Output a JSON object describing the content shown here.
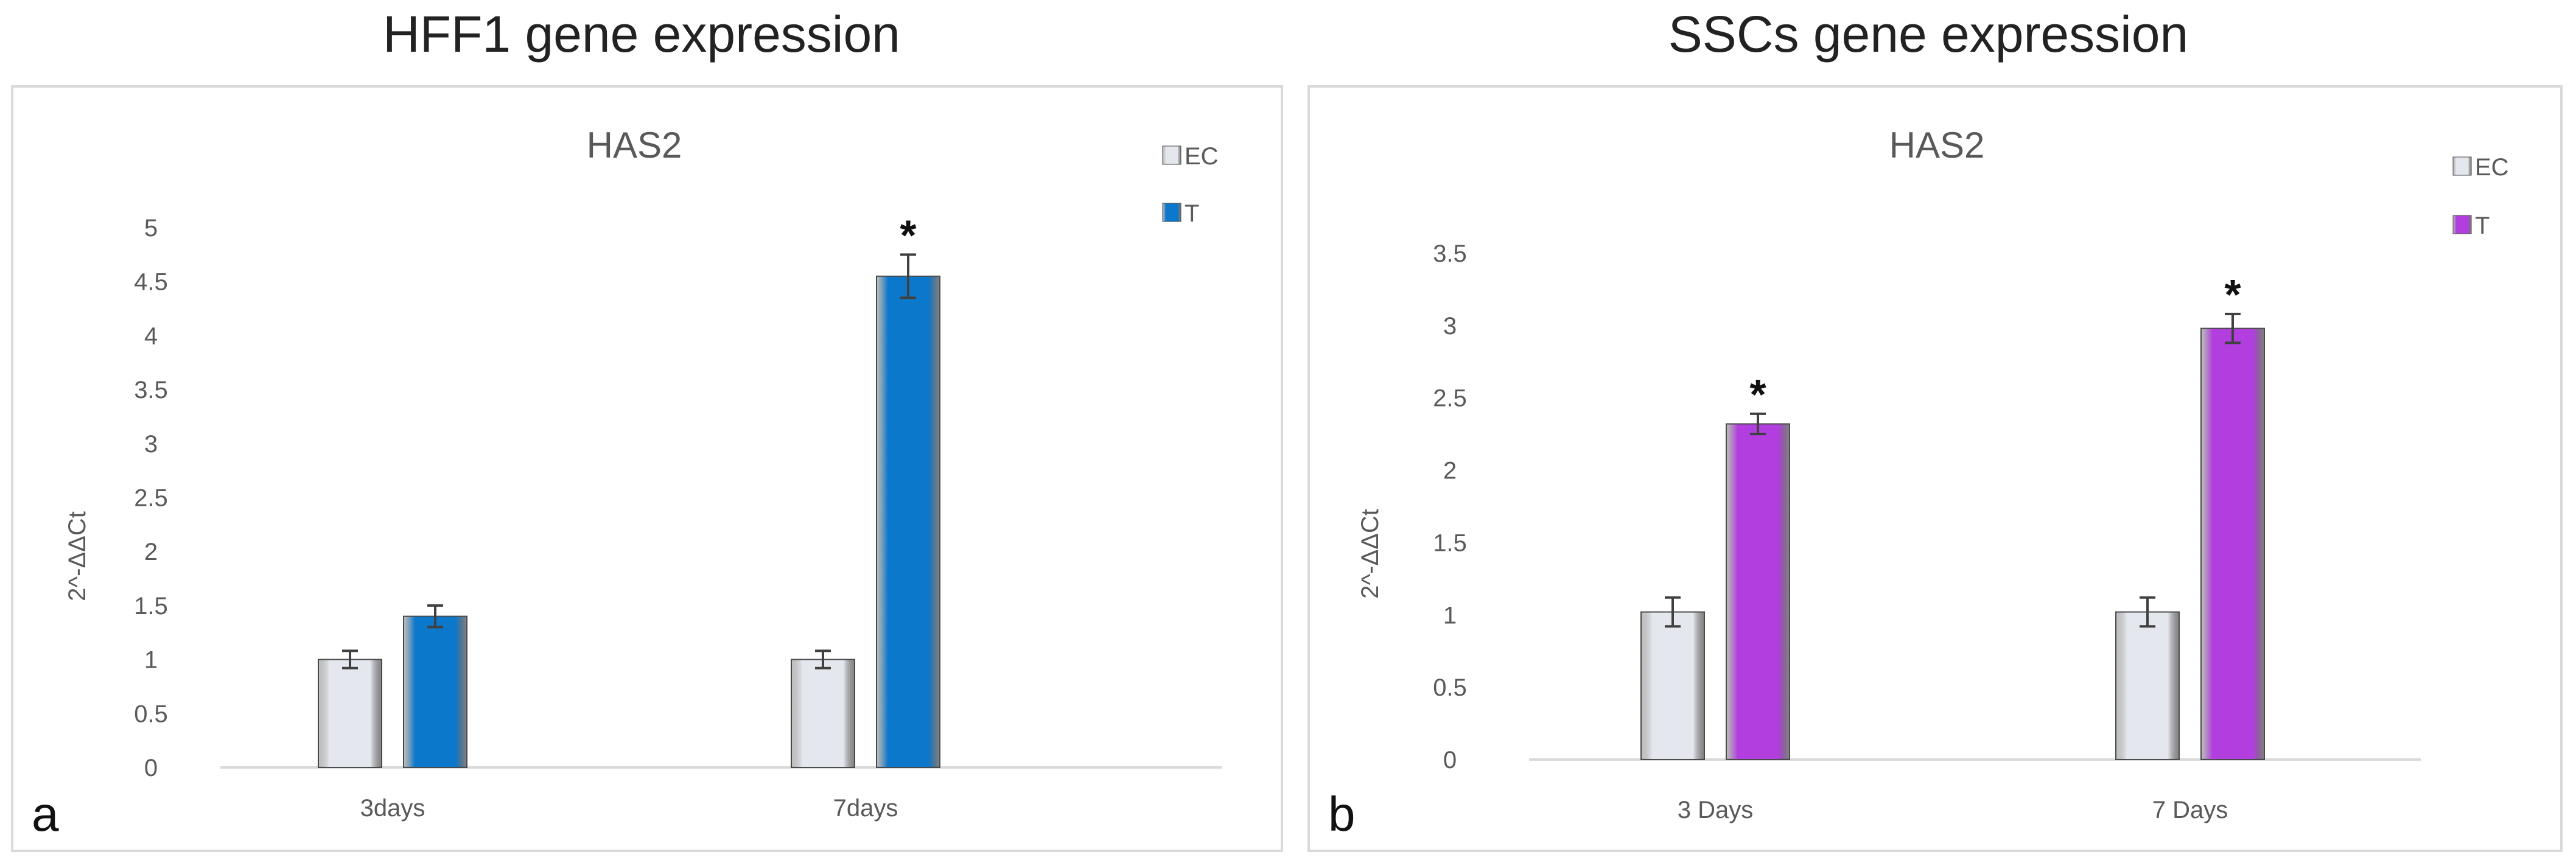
{
  "headings": [
    "HFF1 gene expression",
    "SSCs gene expression"
  ],
  "colors": {
    "ec": "#e4e7ee",
    "panel_a_t": "#0b78cc",
    "panel_b_t": "#b23ee0",
    "text": "#595959",
    "axis": "#d9d9d9"
  },
  "chart_data": [
    {
      "type": "bar",
      "panel_label": "a",
      "title": "HAS2",
      "ylabel": "2^-ΔΔCt",
      "xlabel": "",
      "ylim": [
        0,
        5
      ],
      "yticks": [
        0,
        0.5,
        1,
        1.5,
        2,
        2.5,
        3,
        3.5,
        4,
        4.5,
        5
      ],
      "categories": [
        "3days",
        "7days"
      ],
      "series": [
        {
          "name": "EC",
          "values": [
            1.0,
            1.0
          ],
          "errors": [
            0.08,
            0.08
          ],
          "significance": [
            "",
            ""
          ]
        },
        {
          "name": "T",
          "values": [
            1.4,
            4.55
          ],
          "errors": [
            0.1,
            0.2
          ],
          "significance": [
            "",
            "*"
          ]
        }
      ],
      "legend": "top-right",
      "grid": false
    },
    {
      "type": "bar",
      "panel_label": "b",
      "title": "HAS2",
      "ylabel": "2^-ΔΔCt",
      "xlabel": "",
      "ylim": [
        0,
        3.5
      ],
      "yticks": [
        0,
        0.5,
        1,
        1.5,
        2,
        2.5,
        3,
        3.5
      ],
      "categories": [
        "3 Days",
        "7 Days"
      ],
      "series": [
        {
          "name": "EC",
          "values": [
            1.02,
            1.02
          ],
          "errors": [
            0.1,
            0.1
          ],
          "significance": [
            "",
            ""
          ]
        },
        {
          "name": "T",
          "values": [
            2.32,
            2.98
          ],
          "errors": [
            0.07,
            0.1
          ],
          "significance": [
            "*",
            "*"
          ]
        }
      ],
      "legend": "top-right",
      "grid": false
    }
  ]
}
